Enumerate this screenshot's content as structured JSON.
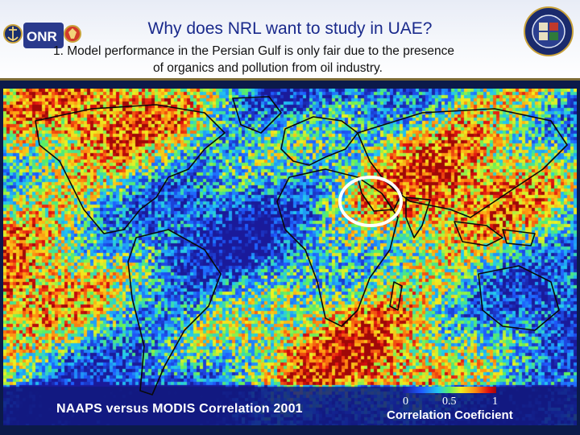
{
  "slide": {
    "title": "Why does NRL want to study in UAE?",
    "bullet_line1": "1.  Model performance in the Persian Gulf is only fair due to the presence",
    "bullet_line2": "of organics and pollution from oil industry."
  },
  "logos": {
    "left_text": "ONR",
    "left_icon": "onr-navy-logo-icon",
    "right_icon": "nrl-seal-icon"
  },
  "map": {
    "caption": "NAAPS versus MODIS Correlation 2001",
    "highlight": "persian-gulf-circle",
    "colorbar": {
      "title": "Correlation Coeficient",
      "ticks": [
        "0",
        "0.5",
        "1"
      ],
      "range": [
        0,
        1
      ]
    },
    "colors": {
      "low": "#1a1a9a",
      "mid": "#5cf060",
      "high": "#e01010",
      "circle": "#ffffff"
    }
  }
}
